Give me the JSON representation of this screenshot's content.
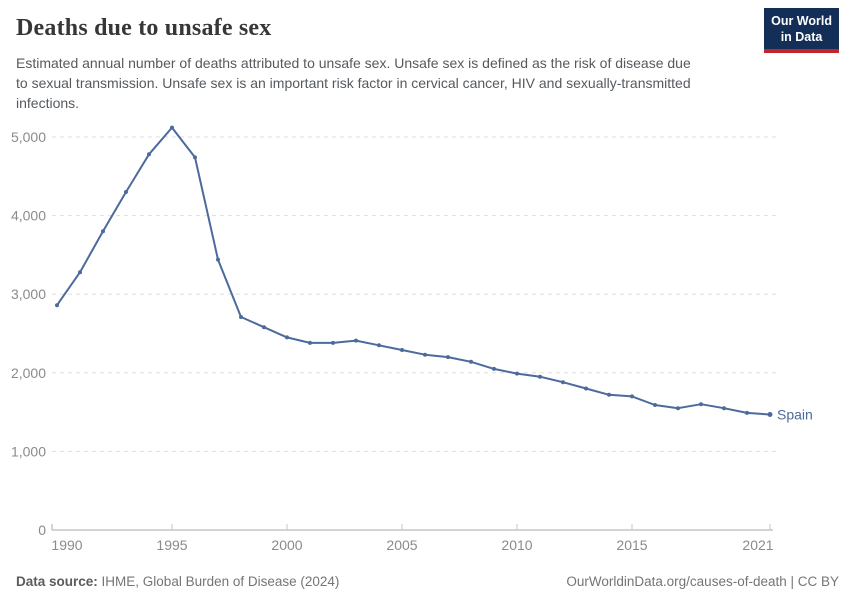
{
  "header": {
    "title": "Deaths due to unsafe sex",
    "subtitle_lines": [
      "Estimated annual number of deaths attributed to unsafe sex. Unsafe sex is defined as the risk of disease due",
      "to sexual transmission. Unsafe sex is an important risk factor in cervical cancer, HIV and sexually-transmitted",
      "infections."
    ],
    "logo": {
      "line1": "Our World",
      "line2": "in Data"
    }
  },
  "chart_data": {
    "type": "line",
    "title": "Deaths due to unsafe sex",
    "xlabel": "",
    "ylabel": "",
    "ylim": [
      0,
      5000
    ],
    "yticks": [
      0,
      1000,
      2000,
      3000,
      4000,
      5000
    ],
    "xticks": [
      1990,
      1995,
      2000,
      2005,
      2010,
      2015,
      2021
    ],
    "grid": "horizontal-dashed",
    "legend_position": "end-of-line-label",
    "x": [
      1990,
      1991,
      1992,
      1993,
      1994,
      1995,
      1996,
      1997,
      1998,
      1999,
      2000,
      2001,
      2002,
      2003,
      2004,
      2005,
      2006,
      2007,
      2008,
      2009,
      2010,
      2011,
      2012,
      2013,
      2014,
      2015,
      2016,
      2017,
      2018,
      2019,
      2020,
      2021
    ],
    "series": [
      {
        "name": "Spain",
        "color": "#4c6a9c",
        "values": [
          2860,
          3280,
          3800,
          4300,
          4780,
          5120,
          4740,
          3440,
          2710,
          2580,
          2450,
          2380,
          2380,
          2410,
          2350,
          2290,
          2230,
          2200,
          2140,
          2050,
          1990,
          1950,
          1880,
          1800,
          1720,
          1700,
          1590,
          1550,
          1600,
          1550,
          1490,
          1470
        ]
      }
    ]
  },
  "colors": {
    "grid": "#dddddd",
    "axis": "#a8a8a8",
    "tick": "#c6c6c6",
    "axis_text": "#8b8b8b",
    "logo_bg": "#132f57",
    "logo_accent": "#c0272d"
  },
  "footer": {
    "source_label": "Data source:",
    "source_value": "IHME, Global Burden of Disease (2024)",
    "link": "OurWorldinData.org/causes-of-death | CC BY"
  }
}
